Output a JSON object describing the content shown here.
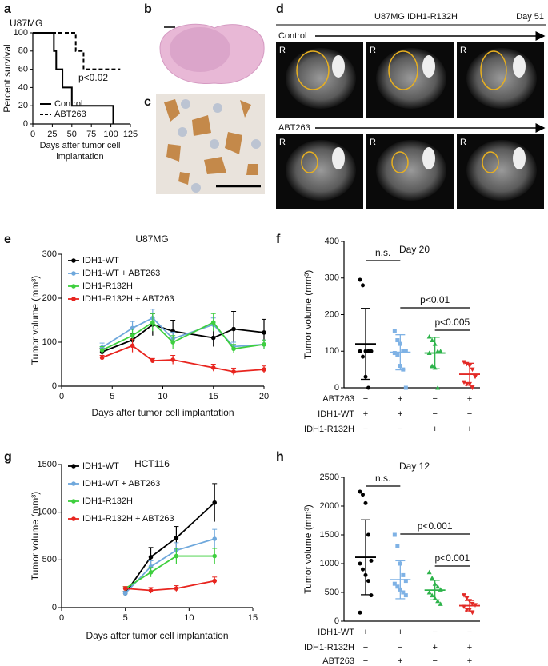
{
  "chart_data": [
    {
      "type": "step",
      "label": "a",
      "title": "U87MG",
      "ylabel": "Percent survival",
      "xlabel": "Days after tumor cell implantation",
      "annotation": "p<0.02",
      "xlim": [
        0,
        125
      ],
      "xticks": [
        0,
        25,
        50,
        75,
        100,
        125
      ],
      "ylim": [
        0,
        100
      ],
      "yticks": [
        0,
        20,
        40,
        60,
        80,
        100
      ],
      "series": [
        {
          "name": "Control",
          "color": "#000000",
          "linestyle": "solid",
          "x": [
            0,
            27,
            30,
            38,
            50,
            103
          ],
          "values": [
            100,
            80,
            60,
            40,
            20,
            0
          ]
        },
        {
          "name": "ABT263",
          "color": "#000000",
          "linestyle": "dashed",
          "x": [
            0,
            55,
            65,
            78,
            112
          ],
          "values": [
            100,
            80,
            60,
            60,
            60
          ]
        }
      ]
    },
    {
      "type": "line",
      "label": "e",
      "title": "U87MG",
      "ylabel": "Tumor volume (mm³)",
      "xlabel": "Days after tumor cell implantation",
      "xlim": [
        0,
        20
      ],
      "xticks": [
        0,
        5,
        10,
        15,
        20
      ],
      "ylim": [
        0,
        300
      ],
      "yticks": [
        0,
        100,
        200,
        300
      ],
      "x": [
        4,
        7,
        9,
        11,
        15,
        17,
        20
      ],
      "series": [
        {
          "name": "IDH1-WT",
          "color": "#000000",
          "values": [
            78,
            105,
            140,
            125,
            110,
            130,
            122
          ],
          "errors": [
            8,
            15,
            25,
            25,
            20,
            40,
            30
          ]
        },
        {
          "name": "IDH1-WT + ABT263",
          "color": "#6fa8dc",
          "values": [
            88,
            132,
            155,
            108,
            140,
            90,
            95
          ],
          "errors": [
            10,
            15,
            20,
            15,
            15,
            10,
            10
          ]
        },
        {
          "name": "IDH1-R132H",
          "color": "#3ecf3e",
          "values": [
            82,
            115,
            145,
            100,
            145,
            85,
            95
          ],
          "errors": [
            8,
            15,
            20,
            15,
            20,
            10,
            10
          ]
        },
        {
          "name": "IDH1-R132H + ABT263",
          "color": "#e8251f",
          "values": [
            65,
            92,
            58,
            60,
            42,
            33,
            38
          ],
          "errors": [
            5,
            15,
            5,
            10,
            8,
            8,
            8
          ]
        }
      ]
    },
    {
      "type": "dotplot",
      "label": "f",
      "title": "Day 20",
      "ylabel": "Tumor volume (mm³)",
      "ylim": [
        0,
        400
      ],
      "yticks": [
        0,
        100,
        200,
        300,
        400
      ],
      "annotations": [
        "n.s.",
        "p<0.01",
        "p<0.005"
      ],
      "groups": [
        {
          "color": "#000000",
          "marker": "circle",
          "values": [
            295,
            280,
            100,
            100,
            100,
            100,
            85,
            30,
            0
          ],
          "mean": 120,
          "sd": 97
        },
        {
          "color": "#7fb2e5",
          "marker": "square",
          "values": [
            155,
            130,
            120,
            100,
            100,
            95,
            90,
            60,
            50,
            0
          ],
          "mean": 97,
          "sd": 48
        },
        {
          "color": "#2db34a",
          "marker": "triangle-up",
          "values": [
            140,
            130,
            120,
            100,
            100,
            95,
            60,
            55,
            0
          ],
          "mean": 95,
          "sd": 43
        },
        {
          "color": "#e32a26",
          "marker": "triangle-down",
          "values": [
            70,
            65,
            60,
            50,
            30,
            15,
            10,
            10,
            0
          ],
          "mean": 37,
          "sd": 30
        }
      ],
      "rows": [
        {
          "label": "ABT263",
          "signs": [
            "−",
            "+",
            "−",
            "+"
          ]
        },
        {
          "label": "IDH1-WT",
          "signs": [
            "+",
            "+",
            "−",
            "−"
          ]
        },
        {
          "label": "IDH1-R132H",
          "signs": [
            "−",
            "−",
            "+",
            "+"
          ]
        }
      ]
    },
    {
      "type": "line",
      "label": "g",
      "title": "HCT116",
      "ylabel": "Tumor volume (mm³)",
      "xlabel": "Days after tumor cell implantation",
      "xlim": [
        0,
        15
      ],
      "xticks": [
        0,
        5,
        10,
        15
      ],
      "ylim": [
        0,
        1500
      ],
      "yticks": [
        0,
        500,
        1000,
        1500
      ],
      "x": [
        5,
        7,
        9,
        12
      ],
      "series": [
        {
          "name": "IDH1-WT",
          "color": "#000000",
          "values": [
            150,
            530,
            730,
            1100
          ],
          "errors": [
            20,
            100,
            120,
            200
          ]
        },
        {
          "name": "IDH1-WT + ABT263",
          "color": "#6fa8dc",
          "values": [
            150,
            430,
            600,
            720
          ],
          "errors": [
            20,
            60,
            80,
            100
          ]
        },
        {
          "name": "IDH1-R132H",
          "color": "#3ecf3e",
          "values": [
            200,
            370,
            540,
            540
          ],
          "errors": [
            20,
            50,
            80,
            80
          ]
        },
        {
          "name": "IDH1-R132H + ABT263",
          "color": "#e8251f",
          "values": [
            200,
            180,
            200,
            280
          ],
          "errors": [
            20,
            30,
            30,
            40
          ]
        }
      ]
    },
    {
      "type": "dotplot",
      "label": "h",
      "title": "Day 12",
      "ylabel": "Tumor volume (mm³)",
      "ylim": [
        0,
        2500
      ],
      "yticks": [
        0,
        500,
        1000,
        1500,
        2000,
        2500
      ],
      "annotations": [
        "n.s.",
        "p<0.001",
        "p<0.001"
      ],
      "groups": [
        {
          "color": "#000000",
          "marker": "circle",
          "values": [
            2250,
            2200,
            2050,
            1500,
            1050,
            1000,
            900,
            800,
            700,
            450,
            150
          ],
          "mean": 1110,
          "sd": 650
        },
        {
          "color": "#7fb2e5",
          "marker": "square",
          "values": [
            1500,
            1300,
            1000,
            800,
            700,
            650,
            600,
            550,
            500,
            450
          ],
          "mean": 720,
          "sd": 330
        },
        {
          "color": "#2db34a",
          "marker": "triangle-up",
          "values": [
            850,
            750,
            650,
            600,
            550,
            500,
            450,
            400,
            350,
            300
          ],
          "mean": 540,
          "sd": 170
        },
        {
          "color": "#e32a26",
          "marker": "triangle-down",
          "values": [
            450,
            400,
            350,
            300,
            280,
            250,
            200,
            200,
            150
          ],
          "mean": 270,
          "sd": 90
        }
      ],
      "rows": [
        {
          "label": "IDH1-WT",
          "signs": [
            "+",
            "+",
            "−",
            "−"
          ]
        },
        {
          "label": "IDH1-R132H",
          "signs": [
            "−",
            "−",
            "+",
            "+"
          ]
        },
        {
          "label": "ABT263",
          "signs": [
            "−",
            "+",
            "−",
            "+"
          ]
        }
      ]
    }
  ],
  "panels": {
    "b": "b",
    "c": "c",
    "d": {
      "label": "d",
      "title": "U87MG IDH1-R132H",
      "day": "Day 51",
      "rows": [
        "Control",
        "ABT263"
      ],
      "marker": "R"
    }
  }
}
